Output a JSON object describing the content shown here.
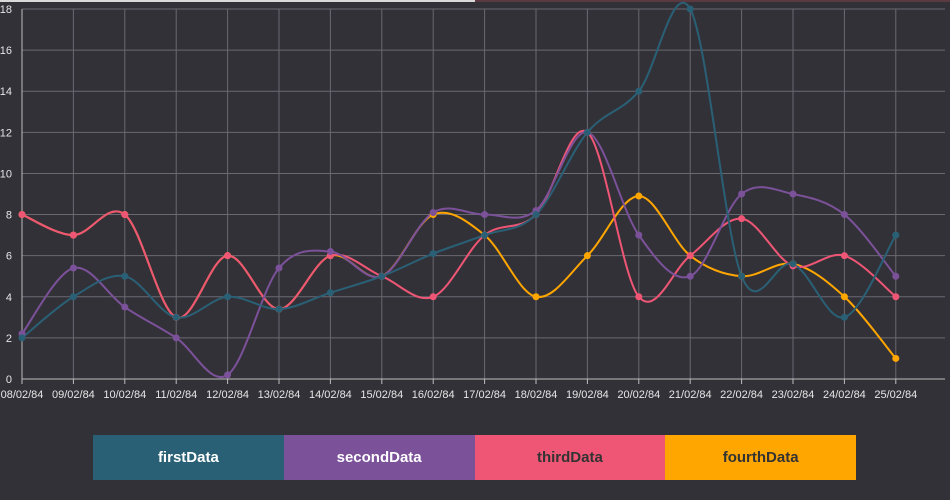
{
  "chart_data": {
    "type": "line",
    "categories": [
      "08/02/84",
      "09/02/84",
      "10/02/84",
      "11/02/84",
      "12/02/84",
      "13/02/84",
      "14/02/84",
      "15/02/84",
      "16/02/84",
      "17/02/84",
      "18/02/84",
      "19/02/84",
      "20/02/84",
      "21/02/84",
      "22/02/84",
      "23/02/84",
      "24/02/84",
      "25/02/84"
    ],
    "yticks": [
      "0",
      "2",
      "4",
      "6",
      "8",
      "10",
      "12",
      "14",
      "16",
      "18"
    ],
    "ylim": [
      0,
      18
    ],
    "grid": true,
    "legend_position": "bottom",
    "series": [
      {
        "name": "firstData",
        "color": "#2a6075",
        "values": [
          2,
          4,
          5,
          3,
          4,
          3.4,
          4.2,
          5,
          6.1,
          7,
          8,
          12,
          14,
          18,
          5,
          5.6,
          3,
          7
        ]
      },
      {
        "name": "secondData",
        "color": "#7b5199",
        "values": [
          2.2,
          5.4,
          3.5,
          2,
          0.2,
          5.4,
          6.2,
          5,
          8.1,
          8,
          8.2,
          12,
          7,
          5,
          9,
          9,
          8,
          5
        ]
      },
      {
        "name": "thirdData",
        "color": "#ef5675",
        "values": [
          8,
          7,
          8,
          3,
          6,
          3.4,
          6,
          5,
          4,
          7,
          8,
          12,
          4,
          6,
          7.8,
          5.5,
          6,
          4
        ]
      },
      {
        "name": "fourthData",
        "color": "#ffa600",
        "values": [
          8,
          7,
          8,
          3,
          6,
          3.4,
          6,
          5,
          8,
          7,
          4,
          6,
          8.9,
          6,
          5,
          5.6,
          4,
          1
        ]
      }
    ]
  },
  "legend": {
    "items": [
      {
        "label": "firstData",
        "bg": "#2a6075",
        "fg": "#ffffff"
      },
      {
        "label": "secondData",
        "bg": "#7b5199",
        "fg": "#ffffff"
      },
      {
        "label": "thirdData",
        "bg": "#ef5675",
        "fg": "#333333"
      },
      {
        "label": "fourthData",
        "bg": "#ffa600",
        "fg": "#333333"
      }
    ]
  }
}
